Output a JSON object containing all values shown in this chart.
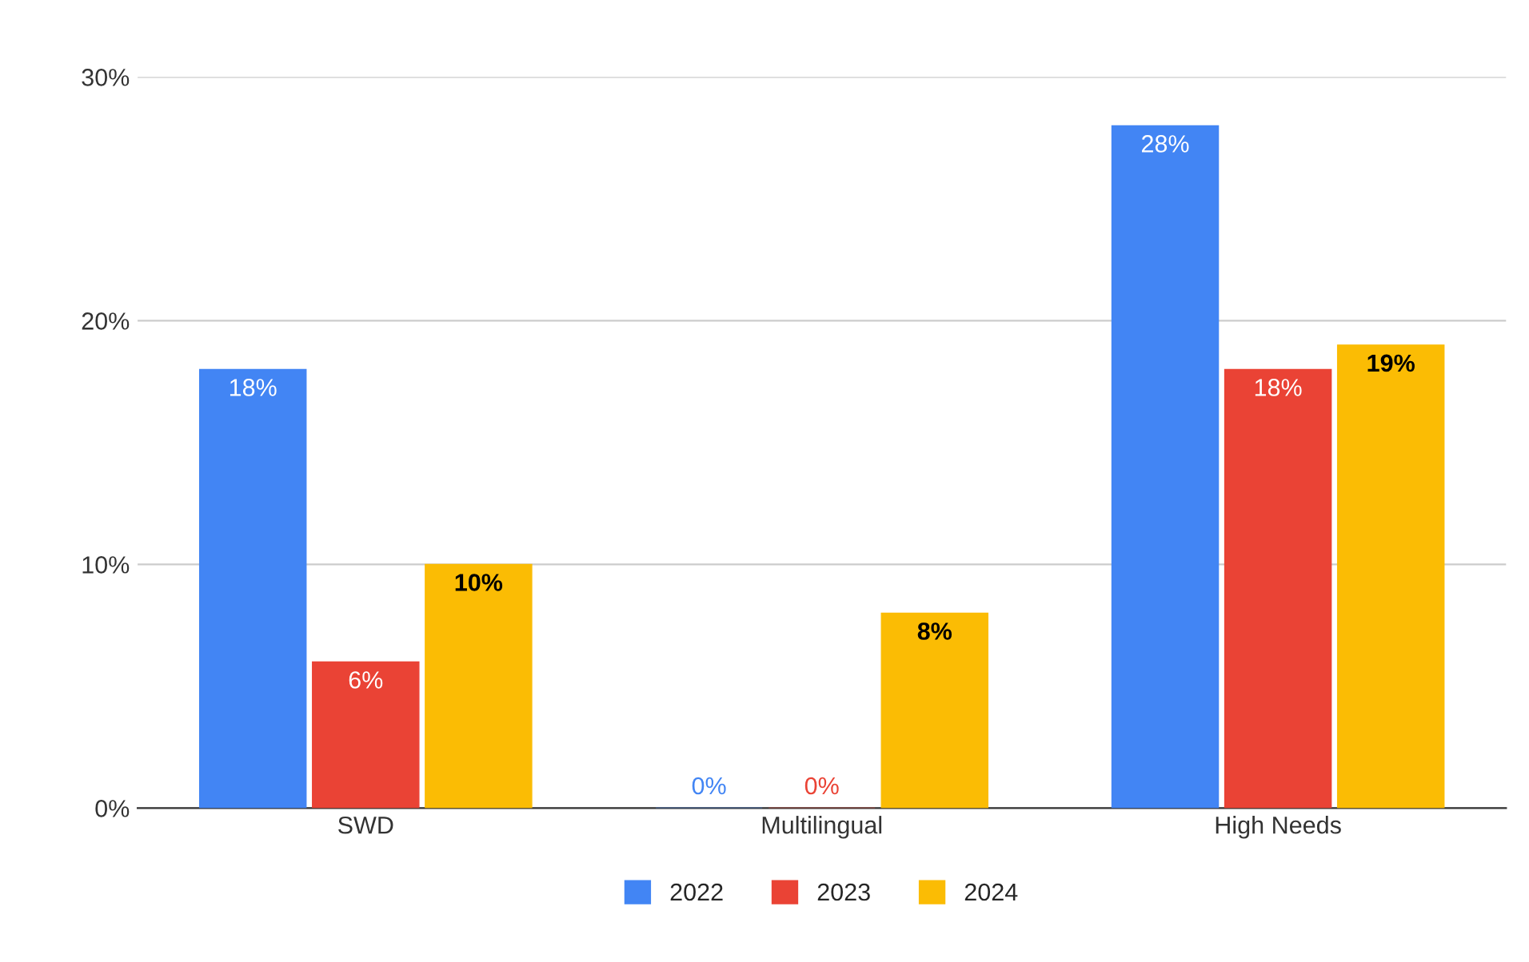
{
  "chart_data": {
    "type": "bar",
    "categories": [
      "SWD",
      "Multilingual",
      "High Needs"
    ],
    "series": [
      {
        "name": "2022",
        "color": "#4285f4",
        "values": [
          18,
          0,
          28
        ],
        "value_labels": [
          "18%",
          "0%",
          "28%"
        ]
      },
      {
        "name": "2023",
        "color": "#ea4335",
        "values": [
          6,
          0,
          18
        ],
        "value_labels": [
          "6%",
          "0%",
          "18%"
        ]
      },
      {
        "name": "2024",
        "color": "#fbbc04",
        "values": [
          10,
          8,
          19
        ],
        "value_labels": [
          "10%",
          "8%",
          "19%"
        ]
      }
    ],
    "ylim": [
      0,
      30
    ],
    "yticks": [
      {
        "value": 0,
        "label": "0%"
      },
      {
        "value": 10,
        "label": "10%"
      },
      {
        "value": 20,
        "label": "20%"
      },
      {
        "value": 30,
        "label": "30%"
      }
    ],
    "grid": "y",
    "legend": "bottom"
  }
}
